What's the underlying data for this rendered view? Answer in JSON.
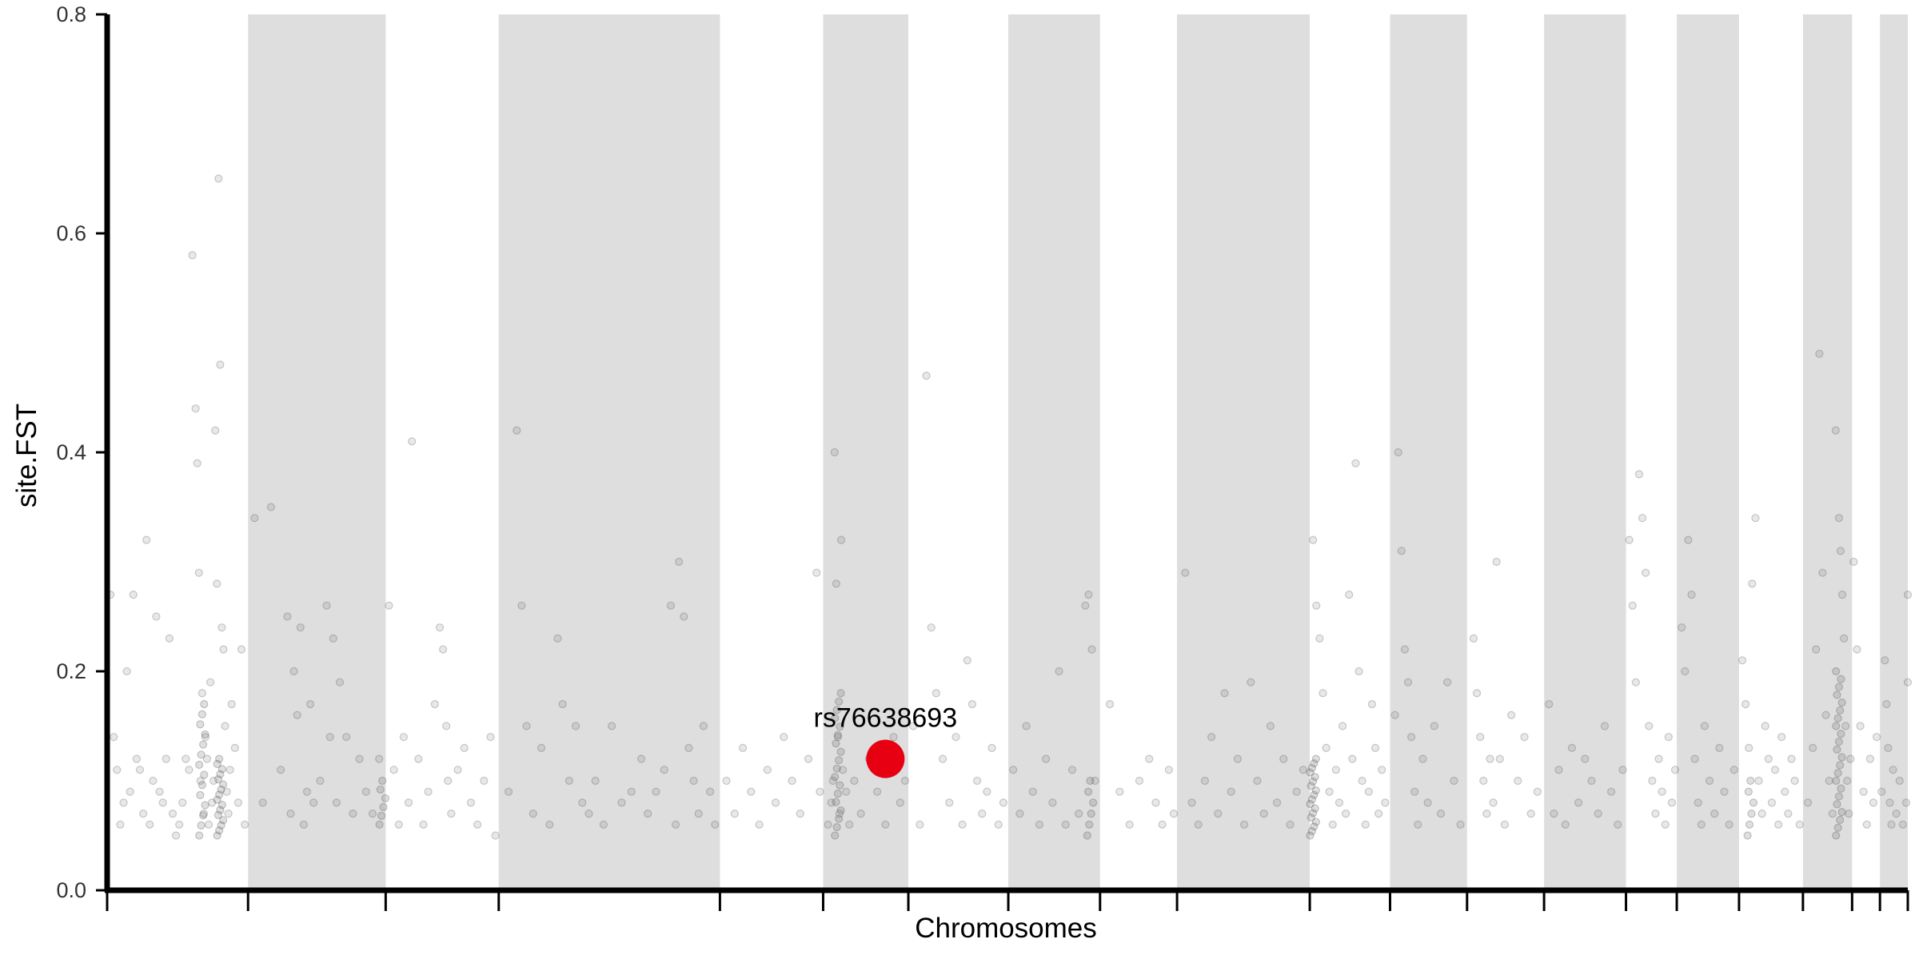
{
  "chart_data": {
    "type": "scatter",
    "xlabel": "Chromosomes",
    "ylabel": "site.FST",
    "ylim": [
      0,
      0.8
    ],
    "y_ticks": [
      "0.0",
      "0.2",
      "0.4",
      "0.6",
      "0.8"
    ],
    "band_color": "#dedede",
    "point_color": "#4d4d4d",
    "highlight_color": "#e60012",
    "chromosome_boundaries": [
      0,
      0.086,
      0.17,
      0.239,
      0.374,
      0.437,
      0.489,
      0.55,
      0.606,
      0.653,
      0.734,
      0.783,
      0.83,
      0.877,
      0.927,
      0.958,
      0.996,
      1.035,
      1.065,
      1.082,
      1.099
    ],
    "shaded_chromosomes": [
      1,
      3,
      5,
      7,
      9,
      11,
      13,
      15,
      17,
      19
    ],
    "points": [
      [
        0.002,
        0.27
      ],
      [
        0.004,
        0.14
      ],
      [
        0.006,
        0.11
      ],
      [
        0.008,
        0.06
      ],
      [
        0.01,
        0.08
      ],
      [
        0.012,
        0.2
      ],
      [
        0.014,
        0.09
      ],
      [
        0.016,
        0.27
      ],
      [
        0.018,
        0.12
      ],
      [
        0.02,
        0.11
      ],
      [
        0.022,
        0.07
      ],
      [
        0.024,
        0.32
      ],
      [
        0.026,
        0.06
      ],
      [
        0.028,
        0.1
      ],
      [
        0.03,
        0.25
      ],
      [
        0.032,
        0.09
      ],
      [
        0.034,
        0.08
      ],
      [
        0.036,
        0.12
      ],
      [
        0.038,
        0.23
      ],
      [
        0.04,
        0.07
      ],
      [
        0.042,
        0.05
      ],
      [
        0.044,
        0.06
      ],
      [
        0.046,
        0.08
      ],
      [
        0.048,
        0.12
      ],
      [
        0.05,
        0.11
      ],
      [
        0.052,
        0.58
      ],
      [
        0.054,
        0.44
      ],
      [
        0.055,
        0.39
      ],
      [
        0.056,
        0.29
      ],
      [
        0.057,
        0.1
      ],
      [
        0.058,
        0.18
      ],
      [
        0.059,
        0.07
      ],
      [
        0.06,
        0.14
      ],
      [
        0.061,
        0.12
      ],
      [
        0.062,
        0.06
      ],
      [
        0.063,
        0.19
      ],
      [
        0.064,
        0.08
      ],
      [
        0.065,
        0.1
      ],
      [
        0.066,
        0.42
      ],
      [
        0.067,
        0.28
      ],
      [
        0.068,
        0.65
      ],
      [
        0.069,
        0.48
      ],
      [
        0.07,
        0.24
      ],
      [
        0.071,
        0.22
      ],
      [
        0.072,
        0.15
      ],
      [
        0.073,
        0.09
      ],
      [
        0.074,
        0.07
      ],
      [
        0.075,
        0.11
      ],
      [
        0.076,
        0.17
      ],
      [
        0.078,
        0.13
      ],
      [
        0.08,
        0.08
      ],
      [
        0.082,
        0.22
      ],
      [
        0.084,
        0.06
      ],
      [
        0.09,
        0.34
      ],
      [
        0.095,
        0.08
      ],
      [
        0.1,
        0.35
      ],
      [
        0.106,
        0.11
      ],
      [
        0.11,
        0.25
      ],
      [
        0.112,
        0.07
      ],
      [
        0.114,
        0.2
      ],
      [
        0.116,
        0.16
      ],
      [
        0.118,
        0.24
      ],
      [
        0.12,
        0.06
      ],
      [
        0.122,
        0.09
      ],
      [
        0.124,
        0.17
      ],
      [
        0.126,
        0.08
      ],
      [
        0.13,
        0.1
      ],
      [
        0.134,
        0.26
      ],
      [
        0.136,
        0.14
      ],
      [
        0.138,
        0.23
      ],
      [
        0.14,
        0.08
      ],
      [
        0.142,
        0.19
      ],
      [
        0.146,
        0.14
      ],
      [
        0.15,
        0.07
      ],
      [
        0.154,
        0.12
      ],
      [
        0.158,
        0.09
      ],
      [
        0.162,
        0.07
      ],
      [
        0.166,
        0.12
      ],
      [
        0.172,
        0.26
      ],
      [
        0.175,
        0.11
      ],
      [
        0.178,
        0.06
      ],
      [
        0.181,
        0.14
      ],
      [
        0.184,
        0.08
      ],
      [
        0.186,
        0.41
      ],
      [
        0.19,
        0.12
      ],
      [
        0.193,
        0.06
      ],
      [
        0.196,
        0.09
      ],
      [
        0.2,
        0.17
      ],
      [
        0.203,
        0.24
      ],
      [
        0.205,
        0.22
      ],
      [
        0.207,
        0.15
      ],
      [
        0.208,
        0.1
      ],
      [
        0.21,
        0.07
      ],
      [
        0.214,
        0.11
      ],
      [
        0.218,
        0.13
      ],
      [
        0.222,
        0.08
      ],
      [
        0.226,
        0.06
      ],
      [
        0.23,
        0.1
      ],
      [
        0.234,
        0.14
      ],
      [
        0.237,
        0.05
      ],
      [
        0.245,
        0.09
      ],
      [
        0.25,
        0.42
      ],
      [
        0.253,
        0.26
      ],
      [
        0.256,
        0.15
      ],
      [
        0.26,
        0.07
      ],
      [
        0.265,
        0.13
      ],
      [
        0.27,
        0.06
      ],
      [
        0.275,
        0.23
      ],
      [
        0.278,
        0.17
      ],
      [
        0.282,
        0.1
      ],
      [
        0.286,
        0.15
      ],
      [
        0.29,
        0.08
      ],
      [
        0.294,
        0.07
      ],
      [
        0.298,
        0.1
      ],
      [
        0.303,
        0.06
      ],
      [
        0.308,
        0.15
      ],
      [
        0.314,
        0.08
      ],
      [
        0.32,
        0.09
      ],
      [
        0.326,
        0.12
      ],
      [
        0.33,
        0.07
      ],
      [
        0.335,
        0.09
      ],
      [
        0.34,
        0.11
      ],
      [
        0.344,
        0.26
      ],
      [
        0.347,
        0.06
      ],
      [
        0.349,
        0.3
      ],
      [
        0.352,
        0.25
      ],
      [
        0.355,
        0.13
      ],
      [
        0.358,
        0.1
      ],
      [
        0.361,
        0.07
      ],
      [
        0.364,
        0.15
      ],
      [
        0.368,
        0.09
      ],
      [
        0.371,
        0.06
      ],
      [
        0.378,
        0.1
      ],
      [
        0.383,
        0.07
      ],
      [
        0.388,
        0.13
      ],
      [
        0.393,
        0.09
      ],
      [
        0.398,
        0.06
      ],
      [
        0.403,
        0.11
      ],
      [
        0.408,
        0.08
      ],
      [
        0.413,
        0.14
      ],
      [
        0.418,
        0.1
      ],
      [
        0.423,
        0.07
      ],
      [
        0.428,
        0.12
      ],
      [
        0.433,
        0.29
      ],
      [
        0.435,
        0.09
      ],
      [
        0.44,
        0.06
      ],
      [
        0.442,
        0.08
      ],
      [
        0.443,
        0.1
      ],
      [
        0.444,
        0.4
      ],
      [
        0.445,
        0.28
      ],
      [
        0.446,
        0.14
      ],
      [
        0.447,
        0.07
      ],
      [
        0.448,
        0.32
      ],
      [
        0.449,
        0.11
      ],
      [
        0.451,
        0.09
      ],
      [
        0.453,
        0.06
      ],
      [
        0.456,
        0.1
      ],
      [
        0.46,
        0.07
      ],
      [
        0.465,
        0.12
      ],
      [
        0.47,
        0.09
      ],
      [
        0.475,
        0.06
      ],
      [
        0.48,
        0.14
      ],
      [
        0.484,
        0.08
      ],
      [
        0.487,
        0.1
      ],
      [
        0.492,
        0.15
      ],
      [
        0.496,
        0.06
      ],
      [
        0.5,
        0.47
      ],
      [
        0.503,
        0.24
      ],
      [
        0.506,
        0.18
      ],
      [
        0.51,
        0.12
      ],
      [
        0.514,
        0.08
      ],
      [
        0.518,
        0.14
      ],
      [
        0.522,
        0.06
      ],
      [
        0.525,
        0.21
      ],
      [
        0.528,
        0.17
      ],
      [
        0.531,
        0.1
      ],
      [
        0.534,
        0.07
      ],
      [
        0.537,
        0.09
      ],
      [
        0.54,
        0.13
      ],
      [
        0.544,
        0.06
      ],
      [
        0.547,
        0.08
      ],
      [
        0.553,
        0.11
      ],
      [
        0.557,
        0.07
      ],
      [
        0.561,
        0.15
      ],
      [
        0.565,
        0.09
      ],
      [
        0.569,
        0.06
      ],
      [
        0.573,
        0.12
      ],
      [
        0.577,
        0.08
      ],
      [
        0.581,
        0.2
      ],
      [
        0.585,
        0.06
      ],
      [
        0.589,
        0.11
      ],
      [
        0.593,
        0.07
      ],
      [
        0.597,
        0.26
      ],
      [
        0.599,
        0.27
      ],
      [
        0.601,
        0.22
      ],
      [
        0.603,
        0.1
      ],
      [
        0.612,
        0.17
      ],
      [
        0.618,
        0.09
      ],
      [
        0.624,
        0.06
      ],
      [
        0.63,
        0.1
      ],
      [
        0.636,
        0.12
      ],
      [
        0.64,
        0.08
      ],
      [
        0.644,
        0.06
      ],
      [
        0.648,
        0.11
      ],
      [
        0.651,
        0.07
      ],
      [
        0.658,
        0.29
      ],
      [
        0.662,
        0.08
      ],
      [
        0.666,
        0.06
      ],
      [
        0.67,
        0.1
      ],
      [
        0.674,
        0.14
      ],
      [
        0.678,
        0.07
      ],
      [
        0.682,
        0.18
      ],
      [
        0.686,
        0.09
      ],
      [
        0.69,
        0.12
      ],
      [
        0.694,
        0.06
      ],
      [
        0.698,
        0.19
      ],
      [
        0.702,
        0.1
      ],
      [
        0.706,
        0.07
      ],
      [
        0.71,
        0.15
      ],
      [
        0.714,
        0.08
      ],
      [
        0.718,
        0.12
      ],
      [
        0.722,
        0.06
      ],
      [
        0.726,
        0.09
      ],
      [
        0.73,
        0.11
      ],
      [
        0.736,
        0.32
      ],
      [
        0.738,
        0.26
      ],
      [
        0.74,
        0.23
      ],
      [
        0.742,
        0.18
      ],
      [
        0.744,
        0.13
      ],
      [
        0.746,
        0.09
      ],
      [
        0.748,
        0.06
      ],
      [
        0.75,
        0.11
      ],
      [
        0.752,
        0.08
      ],
      [
        0.754,
        0.15
      ],
      [
        0.756,
        0.07
      ],
      [
        0.758,
        0.27
      ],
      [
        0.76,
        0.12
      ],
      [
        0.762,
        0.39
      ],
      [
        0.764,
        0.2
      ],
      [
        0.766,
        0.1
      ],
      [
        0.768,
        0.06
      ],
      [
        0.77,
        0.09
      ],
      [
        0.772,
        0.17
      ],
      [
        0.774,
        0.13
      ],
      [
        0.776,
        0.07
      ],
      [
        0.778,
        0.11
      ],
      [
        0.78,
        0.08
      ],
      [
        0.786,
        0.16
      ],
      [
        0.788,
        0.4
      ],
      [
        0.79,
        0.31
      ],
      [
        0.792,
        0.22
      ],
      [
        0.794,
        0.19
      ],
      [
        0.796,
        0.14
      ],
      [
        0.798,
        0.09
      ],
      [
        0.8,
        0.06
      ],
      [
        0.803,
        0.12
      ],
      [
        0.806,
        0.08
      ],
      [
        0.81,
        0.15
      ],
      [
        0.814,
        0.07
      ],
      [
        0.818,
        0.19
      ],
      [
        0.822,
        0.1
      ],
      [
        0.826,
        0.06
      ],
      [
        0.834,
        0.23
      ],
      [
        0.836,
        0.18
      ],
      [
        0.838,
        0.14
      ],
      [
        0.84,
        0.1
      ],
      [
        0.842,
        0.07
      ],
      [
        0.844,
        0.12
      ],
      [
        0.846,
        0.08
      ],
      [
        0.848,
        0.3
      ],
      [
        0.85,
        0.12
      ],
      [
        0.853,
        0.06
      ],
      [
        0.857,
        0.16
      ],
      [
        0.861,
        0.1
      ],
      [
        0.865,
        0.14
      ],
      [
        0.869,
        0.07
      ],
      [
        0.873,
        0.09
      ],
      [
        0.88,
        0.17
      ],
      [
        0.883,
        0.07
      ],
      [
        0.886,
        0.11
      ],
      [
        0.89,
        0.06
      ],
      [
        0.894,
        0.13
      ],
      [
        0.898,
        0.08
      ],
      [
        0.902,
        0.12
      ],
      [
        0.906,
        0.1
      ],
      [
        0.91,
        0.07
      ],
      [
        0.914,
        0.15
      ],
      [
        0.918,
        0.09
      ],
      [
        0.922,
        0.06
      ],
      [
        0.925,
        0.11
      ],
      [
        0.929,
        0.32
      ],
      [
        0.931,
        0.26
      ],
      [
        0.933,
        0.19
      ],
      [
        0.935,
        0.38
      ],
      [
        0.937,
        0.34
      ],
      [
        0.939,
        0.29
      ],
      [
        0.941,
        0.15
      ],
      [
        0.943,
        0.1
      ],
      [
        0.945,
        0.07
      ],
      [
        0.947,
        0.12
      ],
      [
        0.949,
        0.09
      ],
      [
        0.951,
        0.06
      ],
      [
        0.953,
        0.14
      ],
      [
        0.955,
        0.08
      ],
      [
        0.957,
        0.11
      ],
      [
        0.961,
        0.24
      ],
      [
        0.963,
        0.2
      ],
      [
        0.965,
        0.32
      ],
      [
        0.967,
        0.27
      ],
      [
        0.969,
        0.12
      ],
      [
        0.971,
        0.08
      ],
      [
        0.973,
        0.06
      ],
      [
        0.975,
        0.15
      ],
      [
        0.978,
        0.1
      ],
      [
        0.981,
        0.07
      ],
      [
        0.984,
        0.13
      ],
      [
        0.987,
        0.09
      ],
      [
        0.99,
        0.06
      ],
      [
        0.993,
        0.11
      ],
      [
        0.998,
        0.21
      ],
      [
        1.0,
        0.17
      ],
      [
        1.002,
        0.13
      ],
      [
        1.004,
        0.28
      ],
      [
        1.006,
        0.34
      ],
      [
        1.008,
        0.1
      ],
      [
        1.01,
        0.07
      ],
      [
        1.012,
        0.15
      ],
      [
        1.014,
        0.12
      ],
      [
        1.016,
        0.08
      ],
      [
        1.018,
        0.11
      ],
      [
        1.02,
        0.06
      ],
      [
        1.022,
        0.14
      ],
      [
        1.024,
        0.09
      ],
      [
        1.026,
        0.07
      ],
      [
        1.028,
        0.12
      ],
      [
        1.03,
        0.1
      ],
      [
        1.033,
        0.06
      ],
      [
        1.038,
        0.08
      ],
      [
        1.041,
        0.13
      ],
      [
        1.043,
        0.22
      ],
      [
        1.045,
        0.49
      ],
      [
        1.047,
        0.29
      ],
      [
        1.049,
        0.16
      ],
      [
        1.051,
        0.1
      ],
      [
        1.053,
        0.07
      ],
      [
        1.055,
        0.42
      ],
      [
        1.057,
        0.34
      ],
      [
        1.058,
        0.31
      ],
      [
        1.059,
        0.27
      ],
      [
        1.06,
        0.23
      ],
      [
        1.061,
        0.15
      ],
      [
        1.062,
        0.1
      ],
      [
        1.063,
        0.07
      ],
      [
        1.064,
        0.12
      ],
      [
        1.066,
        0.3
      ],
      [
        1.068,
        0.22
      ],
      [
        1.07,
        0.15
      ],
      [
        1.072,
        0.09
      ],
      [
        1.074,
        0.06
      ],
      [
        1.076,
        0.12
      ],
      [
        1.078,
        0.08
      ],
      [
        1.08,
        0.14
      ],
      [
        1.083,
        0.09
      ],
      [
        1.085,
        0.21
      ],
      [
        1.086,
        0.17
      ],
      [
        1.087,
        0.13
      ],
      [
        1.088,
        0.08
      ],
      [
        1.089,
        0.06
      ],
      [
        1.09,
        0.11
      ],
      [
        1.092,
        0.07
      ],
      [
        1.094,
        0.1
      ],
      [
        1.096,
        0.06
      ],
      [
        1.098,
        0.08
      ],
      [
        1.099,
        0.27
      ],
      [
        1.099,
        0.19
      ]
    ],
    "dense_columns": [
      {
        "x": 0.058,
        "min": 0.05,
        "max": 0.17,
        "n": 14
      },
      {
        "x": 0.069,
        "min": 0.05,
        "max": 0.12,
        "n": 16
      },
      {
        "x": 0.446,
        "min": 0.05,
        "max": 0.18,
        "n": 18
      },
      {
        "x": 0.736,
        "min": 0.05,
        "max": 0.12,
        "n": 18
      },
      {
        "x": 1.057,
        "min": 0.05,
        "max": 0.2,
        "n": 22
      },
      {
        "x": 0.168,
        "min": 0.06,
        "max": 0.1,
        "n": 6
      },
      {
        "x": 0.6,
        "min": 0.05,
        "max": 0.1,
        "n": 6
      },
      {
        "x": 1.003,
        "min": 0.05,
        "max": 0.1,
        "n": 6
      }
    ],
    "highlight": {
      "label": "rs76638693",
      "x": 0.475,
      "y": 0.12
    }
  }
}
